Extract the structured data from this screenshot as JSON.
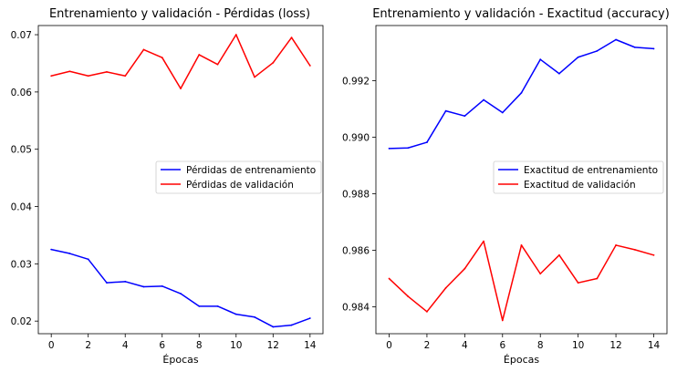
{
  "chart_data": [
    {
      "type": "line",
      "title": "Entrenamiento y validación - Pérdidas (loss)",
      "xlabel": "Épocas",
      "ylabel": "",
      "x": [
        0,
        1,
        2,
        3,
        4,
        5,
        6,
        7,
        8,
        9,
        10,
        11,
        12,
        13,
        14
      ],
      "xticks": [
        "0",
        "2",
        "4",
        "6",
        "8",
        "10",
        "12",
        "14"
      ],
      "xlim": [
        -0.7,
        14.7
      ],
      "ylim": [
        0.0178,
        0.0716
      ],
      "yticks": [
        "0.02",
        "0.03",
        "0.04",
        "0.05",
        "0.06",
        "0.07"
      ],
      "legend_position": "center-right",
      "grid": false,
      "series": [
        {
          "name": "Pérdidas de entrenamiento",
          "color": "#0000ff",
          "values": [
            0.0325,
            0.0318,
            0.0308,
            0.0267,
            0.0269,
            0.026,
            0.0261,
            0.0248,
            0.0226,
            0.0226,
            0.0212,
            0.0207,
            0.019,
            0.0193,
            0.0205
          ]
        },
        {
          "name": "Pérdidas de validación",
          "color": "#ff0000",
          "values": [
            0.0628,
            0.0636,
            0.0628,
            0.0635,
            0.0628,
            0.0674,
            0.066,
            0.0606,
            0.0665,
            0.0648,
            0.07,
            0.0626,
            0.0651,
            0.0695,
            0.0646
          ]
        }
      ]
    },
    {
      "type": "line",
      "title": "Entrenamiento y validación - Exactitud (accuracy)",
      "xlabel": "Épocas",
      "ylabel": "",
      "x": [
        0,
        1,
        2,
        3,
        4,
        5,
        6,
        7,
        8,
        9,
        10,
        11,
        12,
        13,
        14
      ],
      "xticks": [
        "0",
        "2",
        "4",
        "6",
        "8",
        "10",
        "12",
        "14"
      ],
      "xlim": [
        -0.7,
        14.7
      ],
      "ylim": [
        0.98305,
        0.99395
      ],
      "yticks": [
        "0.984",
        "0.986",
        "0.988",
        "0.990",
        "0.992"
      ],
      "legend_position": "center-right",
      "grid": false,
      "series": [
        {
          "name": "Exactitud de entrenamiento",
          "color": "#0000ff",
          "values": [
            0.9896,
            0.98962,
            0.98982,
            0.99093,
            0.99075,
            0.99132,
            0.99087,
            0.99157,
            0.99275,
            0.99225,
            0.99283,
            0.99305,
            0.99345,
            0.99318,
            0.99313
          ]
        },
        {
          "name": "Exactitud de validación",
          "color": "#ff0000",
          "values": [
            0.985,
            0.98437,
            0.98383,
            0.98467,
            0.98535,
            0.98632,
            0.98352,
            0.98618,
            0.98517,
            0.98583,
            0.98485,
            0.985,
            0.98618,
            0.98602,
            0.98583
          ]
        }
      ]
    }
  ]
}
